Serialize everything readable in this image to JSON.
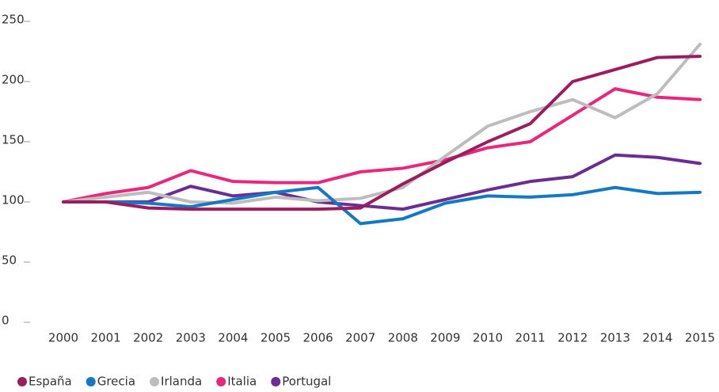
{
  "chart_data": {
    "type": "line",
    "categories": [
      "2000",
      "2001",
      "2002",
      "2003",
      "2004",
      "2005",
      "2006",
      "2007",
      "2008",
      "2009",
      "2010",
      "2011",
      "2012",
      "2013",
      "2014",
      "2015"
    ],
    "series": [
      {
        "name": "España",
        "color": "#9b1d5e",
        "values": [
          100,
          100,
          95,
          94,
          94,
          94,
          94,
          95,
          115,
          133,
          150,
          165,
          200,
          210,
          220,
          221
        ]
      },
      {
        "name": "Grecia",
        "color": "#1479c4",
        "values": [
          100,
          100,
          99,
          96,
          102,
          108,
          112,
          82,
          86,
          99,
          105,
          104,
          106,
          112,
          107,
          108
        ]
      },
      {
        "name": "Irlanda",
        "color": "#bdbdbd",
        "values": [
          100,
          104,
          108,
          100,
          99,
          104,
          101,
          103,
          112,
          138,
          163,
          175,
          185,
          170,
          190,
          231
        ]
      },
      {
        "name": "Italia",
        "color": "#e8287d",
        "values": [
          100,
          107,
          112,
          126,
          117,
          116,
          116,
          125,
          128,
          135,
          145,
          150,
          172,
          194,
          187,
          185
        ]
      },
      {
        "name": "Portugal",
        "color": "#6a2d91",
        "values": [
          100,
          100,
          100,
          113,
          105,
          108,
          100,
          97,
          94,
          102,
          110,
          117,
          121,
          139,
          137,
          132
        ]
      }
    ],
    "ylim": [
      0,
      250
    ],
    "yticks": [
      0,
      50,
      100,
      150,
      200,
      250
    ],
    "grid": false
  }
}
